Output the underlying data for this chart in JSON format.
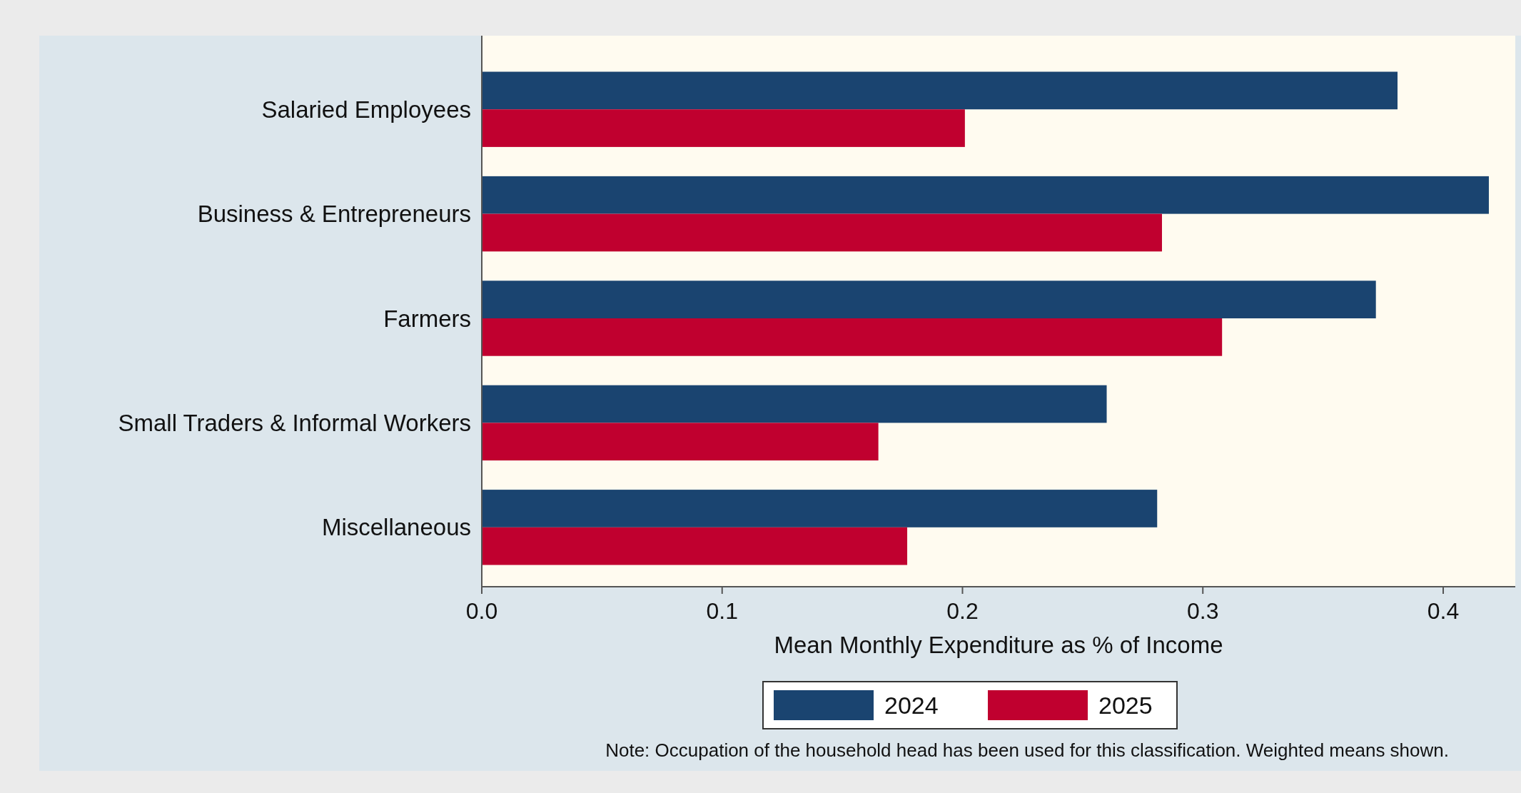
{
  "chart_data": {
    "type": "bar",
    "orientation": "horizontal",
    "xlabel": "Mean Monthly Expenditure as % of Income",
    "categories": [
      "Salaried Employees",
      "Business & Entrepreneurs",
      "Farmers",
      "Small Traders & Informal Workers",
      "Miscellaneous"
    ],
    "series": [
      {
        "name": "2024",
        "color": "#1a4470",
        "values": [
          0.381,
          0.419,
          0.372,
          0.26,
          0.281
        ]
      },
      {
        "name": "2025",
        "color": "#c0002f",
        "values": [
          0.201,
          0.283,
          0.308,
          0.165,
          0.177
        ]
      }
    ],
    "xlim": [
      0,
      0.43
    ],
    "xticks": [
      {
        "value": 0,
        "label": "0.0"
      },
      0.1,
      0.2,
      0.3,
      0.4
    ],
    "grid": false,
    "legend": "bottom",
    "annotations": [
      "Note: Occupation of the household head has been used for this classification. Weighted means shown."
    ]
  }
}
